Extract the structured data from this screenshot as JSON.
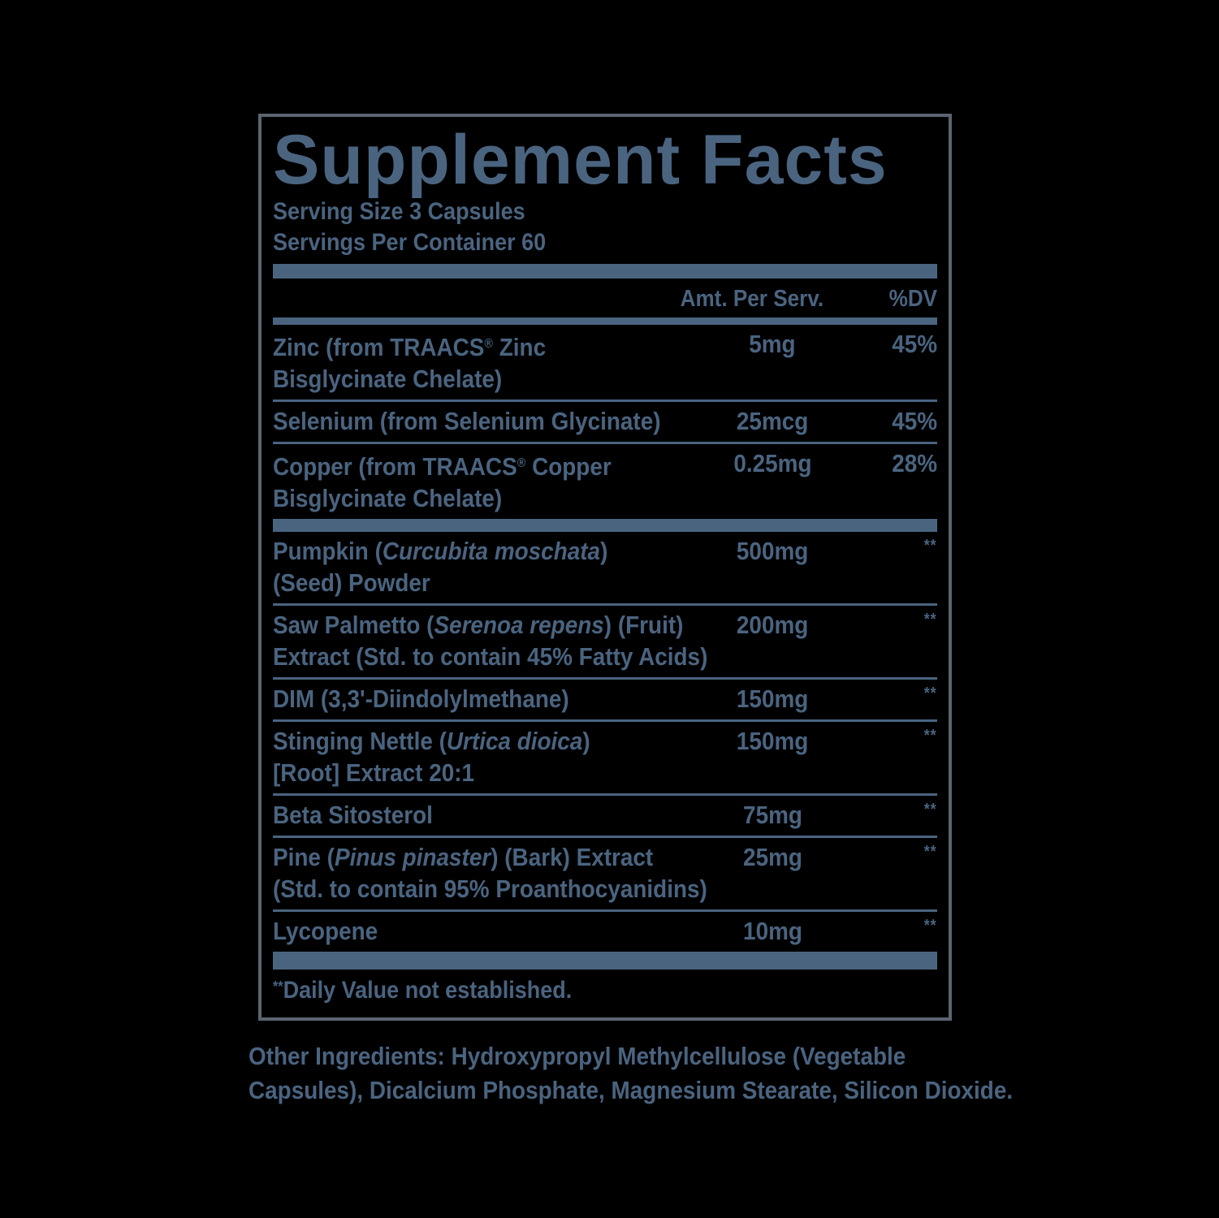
{
  "colors": {
    "text": "#4A6480",
    "border": "#5A6570",
    "background": "#000000"
  },
  "title": "Supplement Facts",
  "serving": {
    "size": "Serving Size 3 Capsules",
    "per_container": "Servings Per Container 60"
  },
  "header": {
    "amount": "Amt. Per Serv.",
    "dv": "%DV"
  },
  "rows": [
    {
      "lines": [
        [
          {
            "t": "Zinc (from TRAACS"
          },
          {
            "t": "®",
            "s": "sup"
          },
          {
            "t": " Zinc"
          }
        ],
        [
          {
            "t": "Bisglycinate Chelate)"
          }
        ]
      ],
      "amount": "5mg",
      "dv": "45%",
      "separator": false
    },
    {
      "lines": [
        [
          {
            "t": "Selenium (from Selenium Glycinate)"
          }
        ]
      ],
      "amount": "25mcg",
      "dv": "45%",
      "separator": true
    },
    {
      "lines": [
        [
          {
            "t": "Copper (from TRAACS"
          },
          {
            "t": "®",
            "s": "sup"
          },
          {
            "t": " Copper"
          }
        ],
        [
          {
            "t": "Bisglycinate Chelate)"
          }
        ]
      ],
      "amount": "0.25mg",
      "dv": "28%",
      "separator": true
    },
    {
      "bar": "grp"
    },
    {
      "lines": [
        [
          {
            "t": "Pumpkin ("
          },
          {
            "t": "Curcubita moschata",
            "s": "i"
          },
          {
            "t": ")"
          }
        ],
        [
          {
            "t": "(Seed) Powder"
          }
        ]
      ],
      "amount": "500mg",
      "dv": "**",
      "separator": false
    },
    {
      "lines": [
        [
          {
            "t": "Saw Palmetto ("
          },
          {
            "t": "Serenoa repens",
            "s": "i"
          },
          {
            "t": ") (Fruit)"
          }
        ],
        [
          {
            "t": "Extract (Std. to contain 45% Fatty Acids)"
          }
        ]
      ],
      "amount": "200mg",
      "dv": "**",
      "separator": true
    },
    {
      "lines": [
        [
          {
            "t": "DIM (3,3'-Diindolylmethane)"
          }
        ]
      ],
      "amount": "150mg",
      "dv": "**",
      "separator": true
    },
    {
      "lines": [
        [
          {
            "t": "Stinging Nettle ("
          },
          {
            "t": "Urtica dioica",
            "s": "i"
          },
          {
            "t": ")"
          }
        ],
        [
          {
            "t": "[Root] Extract 20:1"
          }
        ]
      ],
      "amount": "150mg",
      "dv": "**",
      "separator": true
    },
    {
      "lines": [
        [
          {
            "t": "Beta Sitosterol"
          }
        ]
      ],
      "amount": "75mg",
      "dv": "**",
      "separator": true
    },
    {
      "lines": [
        [
          {
            "t": "Pine ("
          },
          {
            "t": "Pinus pinaster",
            "s": "i"
          },
          {
            "t": ") (Bark) Extract"
          }
        ],
        [
          {
            "t": "(Std. to contain 95% Proanthocyanidins)"
          }
        ]
      ],
      "amount": "25mg",
      "dv": "**",
      "separator": true
    },
    {
      "lines": [
        [
          {
            "t": "Lycopene"
          }
        ]
      ],
      "amount": "10mg",
      "dv": "**",
      "separator": true
    }
  ],
  "footnote": {
    "sup": "**",
    "text": "Daily Value not established."
  },
  "other_ingredients": {
    "line1": "Other Ingredients: Hydroxypropyl Methylcellulose (Vegetable",
    "line2": "Capsules), Dicalcium Phosphate, Magnesium Stearate, Silicon Dioxide."
  }
}
